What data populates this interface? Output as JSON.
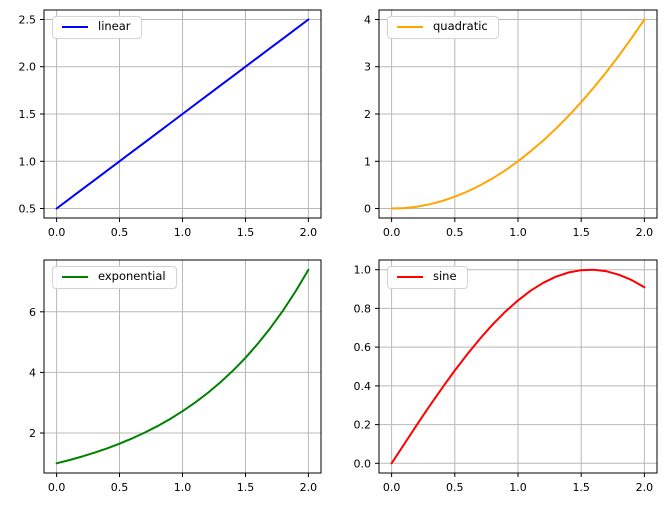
{
  "style": {
    "background": "#ffffff",
    "grid_color": "#b8b8b8",
    "spine_color": "#000000",
    "tick_color": "#000000",
    "tick_label_color": "#000000"
  },
  "chart_data": [
    {
      "type": "line",
      "name": "linear",
      "label": "linear",
      "color": "#0000ff",
      "legend_position": "upper-left",
      "grid": true,
      "x": [
        0.0,
        0.1,
        0.2,
        0.3,
        0.4,
        0.5,
        0.6,
        0.7,
        0.8,
        0.9,
        1.0,
        1.1,
        1.2,
        1.3,
        1.4,
        1.5,
        1.6,
        1.7,
        1.8,
        1.9,
        2.0
      ],
      "y": [
        0.5,
        0.6,
        0.7,
        0.8,
        0.9,
        1.0,
        1.1,
        1.2,
        1.3,
        1.4,
        1.5,
        1.6,
        1.7,
        1.8,
        1.9,
        2.0,
        2.1,
        2.2,
        2.3,
        2.4,
        2.5
      ],
      "xlim": [
        -0.1,
        2.1
      ],
      "ylim": [
        0.4,
        2.6
      ],
      "xticks": {
        "values": [
          0.0,
          0.5,
          1.0,
          1.5,
          2.0
        ],
        "labels": [
          "0.0",
          "0.5",
          "1.0",
          "1.5",
          "2.0"
        ]
      },
      "yticks": {
        "values": [
          0.5,
          1.0,
          1.5,
          2.0,
          2.5
        ],
        "labels": [
          "0.5",
          "1.0",
          "1.5",
          "2.0",
          "2.5"
        ]
      }
    },
    {
      "type": "line",
      "name": "quadratic",
      "label": "quadratic",
      "color": "#ffa500",
      "legend_position": "upper-left",
      "grid": true,
      "x": [
        0.0,
        0.1,
        0.2,
        0.3,
        0.4,
        0.5,
        0.6,
        0.7,
        0.8,
        0.9,
        1.0,
        1.1,
        1.2,
        1.3,
        1.4,
        1.5,
        1.6,
        1.7,
        1.8,
        1.9,
        2.0
      ],
      "y": [
        0.0,
        0.01,
        0.04,
        0.09,
        0.16,
        0.25,
        0.36,
        0.49,
        0.64,
        0.81,
        1.0,
        1.21,
        1.44,
        1.69,
        1.96,
        2.25,
        2.56,
        2.89,
        3.24,
        3.61,
        4.0
      ],
      "xlim": [
        -0.1,
        2.1
      ],
      "ylim": [
        -0.2,
        4.2
      ],
      "xticks": {
        "values": [
          0.0,
          0.5,
          1.0,
          1.5,
          2.0
        ],
        "labels": [
          "0.0",
          "0.5",
          "1.0",
          "1.5",
          "2.0"
        ]
      },
      "yticks": {
        "values": [
          0,
          1,
          2,
          3,
          4
        ],
        "labels": [
          "0",
          "1",
          "2",
          "3",
          "4"
        ]
      }
    },
    {
      "type": "line",
      "name": "exponential",
      "label": "exponential",
      "color": "#008000",
      "legend_position": "upper-left",
      "grid": true,
      "x": [
        0.0,
        0.1,
        0.2,
        0.3,
        0.4,
        0.5,
        0.6,
        0.7,
        0.8,
        0.9,
        1.0,
        1.1,
        1.2,
        1.3,
        1.4,
        1.5,
        1.6,
        1.7,
        1.8,
        1.9,
        2.0
      ],
      "y": [
        1.0,
        1.1052,
        1.2214,
        1.3499,
        1.4918,
        1.6487,
        1.8221,
        2.0138,
        2.2255,
        2.4596,
        2.7183,
        3.0042,
        3.3201,
        3.6693,
        4.0552,
        4.4817,
        4.953,
        5.4739,
        6.0496,
        6.6859,
        7.3891
      ],
      "xlim": [
        -0.1,
        2.1
      ],
      "ylim": [
        0.6805,
        7.7086
      ],
      "xticks": {
        "values": [
          0.0,
          0.5,
          1.0,
          1.5,
          2.0
        ],
        "labels": [
          "0.0",
          "0.5",
          "1.0",
          "1.5",
          "2.0"
        ]
      },
      "yticks": {
        "values": [
          2,
          4,
          6
        ],
        "labels": [
          "2",
          "4",
          "6"
        ]
      }
    },
    {
      "type": "line",
      "name": "sine",
      "label": "sine",
      "color": "#ff0000",
      "legend_position": "upper-left",
      "grid": true,
      "x": [
        0.0,
        0.1,
        0.2,
        0.3,
        0.4,
        0.5,
        0.6,
        0.7,
        0.8,
        0.9,
        1.0,
        1.1,
        1.2,
        1.3,
        1.4,
        1.5,
        1.6,
        1.7,
        1.8,
        1.9,
        2.0
      ],
      "y": [
        0.0,
        0.0998,
        0.1987,
        0.2955,
        0.3894,
        0.4794,
        0.5646,
        0.6442,
        0.7174,
        0.7833,
        0.8415,
        0.8912,
        0.932,
        0.9636,
        0.9854,
        0.9975,
        0.9996,
        0.9917,
        0.9738,
        0.9463,
        0.9093
      ],
      "xlim": [
        -0.1,
        2.1
      ],
      "ylim": [
        -0.05,
        1.05
      ],
      "xticks": {
        "values": [
          0.0,
          0.5,
          1.0,
          1.5,
          2.0
        ],
        "labels": [
          "0.0",
          "0.5",
          "1.0",
          "1.5",
          "2.0"
        ]
      },
      "yticks": {
        "values": [
          0.0,
          0.2,
          0.4,
          0.6,
          0.8,
          1.0
        ],
        "labels": [
          "0.0",
          "0.2",
          "0.4",
          "0.6",
          "0.8",
          "1.0"
        ]
      }
    }
  ]
}
